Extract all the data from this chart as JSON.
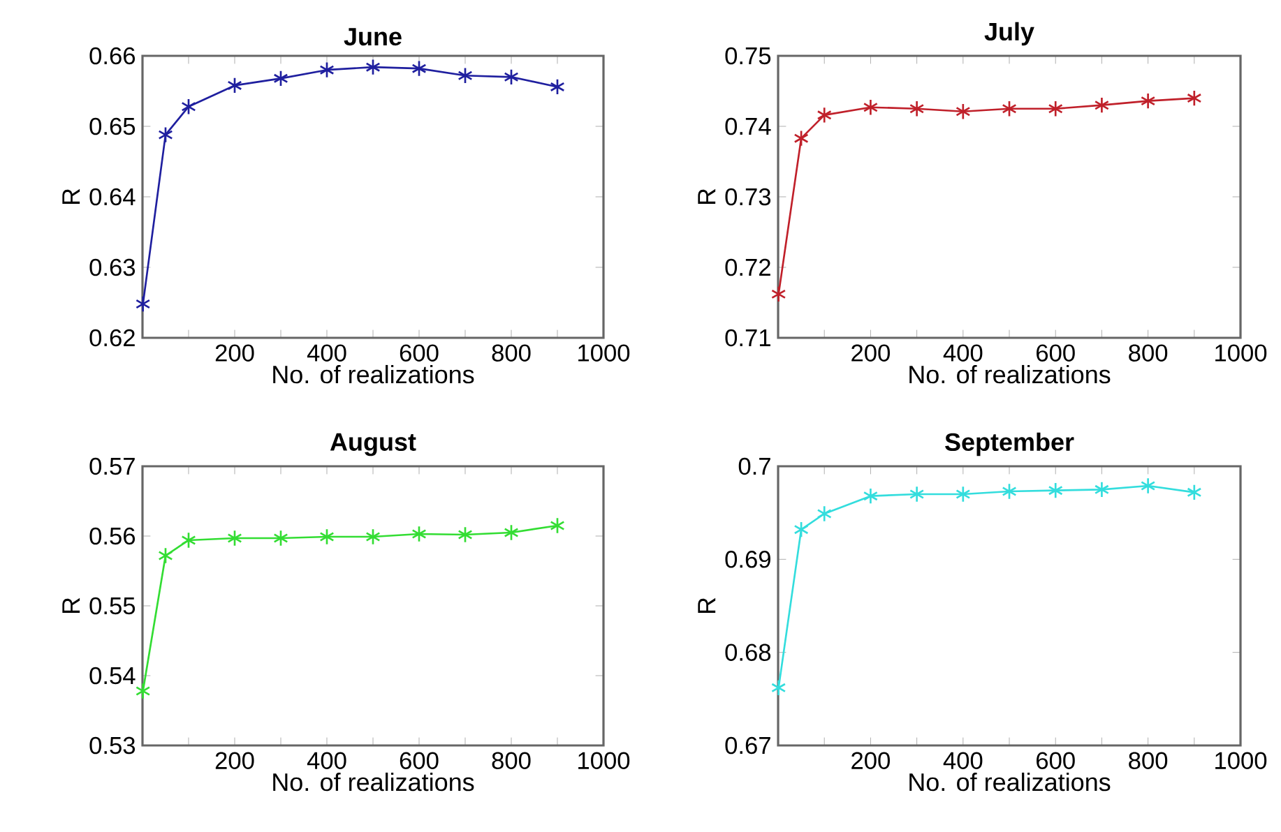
{
  "chart_data": [
    {
      "type": "line",
      "title": "June",
      "xlabel": "No. of realizations",
      "ylabel": "R",
      "x": [
        1,
        50,
        100,
        200,
        300,
        400,
        500,
        600,
        700,
        800,
        900
      ],
      "values": [
        0.6248,
        0.6488,
        0.6528,
        0.6558,
        0.6568,
        0.658,
        0.6584,
        0.6582,
        0.6572,
        0.657,
        0.6556
      ],
      "color": "#1f1f9f",
      "marker": "cross",
      "xlim": [
        0,
        1000
      ],
      "xticks": [
        {
          "value": 100,
          "label": null
        },
        200,
        {
          "value": 300,
          "label": null
        },
        400,
        {
          "value": 500,
          "label": null
        },
        600,
        {
          "value": 700,
          "label": null
        },
        800,
        {
          "value": 900,
          "label": null
        },
        1000
      ],
      "ylim": [
        0.62,
        0.66
      ],
      "yticks": [
        0.62,
        0.63,
        0.64,
        0.65,
        0.66
      ]
    },
    {
      "type": "line",
      "title": "July",
      "xlabel": "No. of realizations",
      "ylabel": "R",
      "x": [
        1,
        50,
        100,
        200,
        300,
        400,
        500,
        600,
        700,
        800,
        900
      ],
      "values": [
        0.7162,
        0.7383,
        0.7416,
        0.7427,
        0.7425,
        0.7421,
        0.7425,
        0.7425,
        0.743,
        0.7436,
        0.744
      ],
      "color": "#c0202a",
      "marker": "cross",
      "xlim": [
        0,
        1000
      ],
      "xticks": [
        {
          "value": 100,
          "label": null
        },
        200,
        {
          "value": 300,
          "label": null
        },
        400,
        {
          "value": 500,
          "label": null
        },
        600,
        {
          "value": 700,
          "label": null
        },
        800,
        {
          "value": 900,
          "label": null
        },
        1000
      ],
      "ylim": [
        0.71,
        0.75
      ],
      "yticks": [
        0.71,
        0.72,
        0.73,
        0.74,
        0.75
      ]
    },
    {
      "type": "line",
      "title": "August",
      "xlabel": "No. of realizations",
      "ylabel": "R",
      "x": [
        1,
        50,
        100,
        200,
        300,
        400,
        500,
        600,
        700,
        800,
        900
      ],
      "values": [
        0.5378,
        0.5572,
        0.5594,
        0.5597,
        0.5597,
        0.5599,
        0.5599,
        0.5603,
        0.5602,
        0.5605,
        0.5615
      ],
      "color": "#33dd33",
      "marker": "cross",
      "xlim": [
        0,
        1000
      ],
      "xticks": [
        {
          "value": 100,
          "label": null
        },
        200,
        {
          "value": 300,
          "label": null
        },
        400,
        {
          "value": 500,
          "label": null
        },
        600,
        {
          "value": 700,
          "label": null
        },
        800,
        {
          "value": 900,
          "label": null
        },
        1000
      ],
      "ylim": [
        0.53,
        0.57
      ],
      "yticks": [
        0.53,
        0.54,
        0.55,
        0.56,
        0.57
      ]
    },
    {
      "type": "line",
      "title": "September",
      "xlabel": "No. of realizations",
      "ylabel": "R",
      "x": [
        1,
        50,
        100,
        200,
        300,
        400,
        500,
        600,
        700,
        800,
        900
      ],
      "values": [
        0.6762,
        0.6932,
        0.6949,
        0.6968,
        0.697,
        0.697,
        0.6973,
        0.6974,
        0.6975,
        0.6979,
        0.6972
      ],
      "color": "#33dddd",
      "marker": "cross",
      "xlim": [
        0,
        1000
      ],
      "xticks": [
        {
          "value": 100,
          "label": null
        },
        200,
        {
          "value": 300,
          "label": null
        },
        400,
        {
          "value": 500,
          "label": null
        },
        600,
        {
          "value": 700,
          "label": null
        },
        800,
        {
          "value": 900,
          "label": null
        },
        1000
      ],
      "ylim": [
        0.67,
        0.7
      ],
      "yticks": [
        0.67,
        0.68,
        0.69,
        {
          "value": 0.7,
          "label": "0.7"
        }
      ]
    }
  ]
}
